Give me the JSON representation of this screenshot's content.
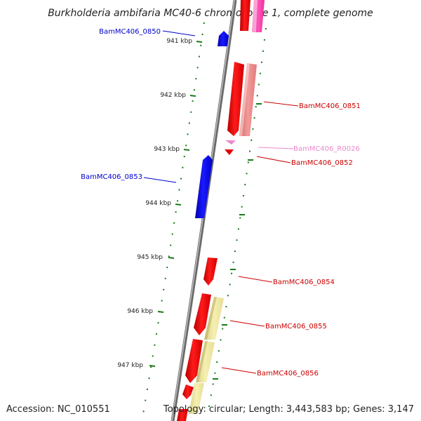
{
  "title": "Burkholderia ambifaria MC40-6 chromosome 1, complete genome",
  "footer": {
    "accession": "Accession: NC_010551",
    "topology": "Topology: circular; Length: 3,443,583 bp; Genes: 3,147"
  },
  "kbp_labels": [
    "941 kbp",
    "942 kbp",
    "943 kbp",
    "944 kbp",
    "945 kbp",
    "946 kbp",
    "947 kbp"
  ],
  "gene_labels": [
    {
      "text": "BamMC406_0850",
      "color": "#0000cc"
    },
    {
      "text": "BamMC406_0851",
      "color": "#cc0000"
    },
    {
      "text": "BamMC406_R0026",
      "color": "#ee88cc"
    },
    {
      "text": "BamMC406_0852",
      "color": "#cc0000"
    },
    {
      "text": "BamMC406_0853",
      "color": "#0000cc"
    },
    {
      "text": "BamMC406_0854",
      "color": "#cc0000"
    },
    {
      "text": "BamMC406_0855",
      "color": "#cc0000"
    },
    {
      "text": "BamMC406_0856",
      "color": "#cc0000"
    }
  ],
  "colors": {
    "backbone": "#888888",
    "ticks": "#1a7a1a",
    "reverse_gene": "#0000ee",
    "forward_gene": "#ee0000",
    "trna": "#ee88cc",
    "light_red": "#f08a8a",
    "pale_yellow": "#f0e8a0",
    "magenta": "#ff33aa"
  }
}
